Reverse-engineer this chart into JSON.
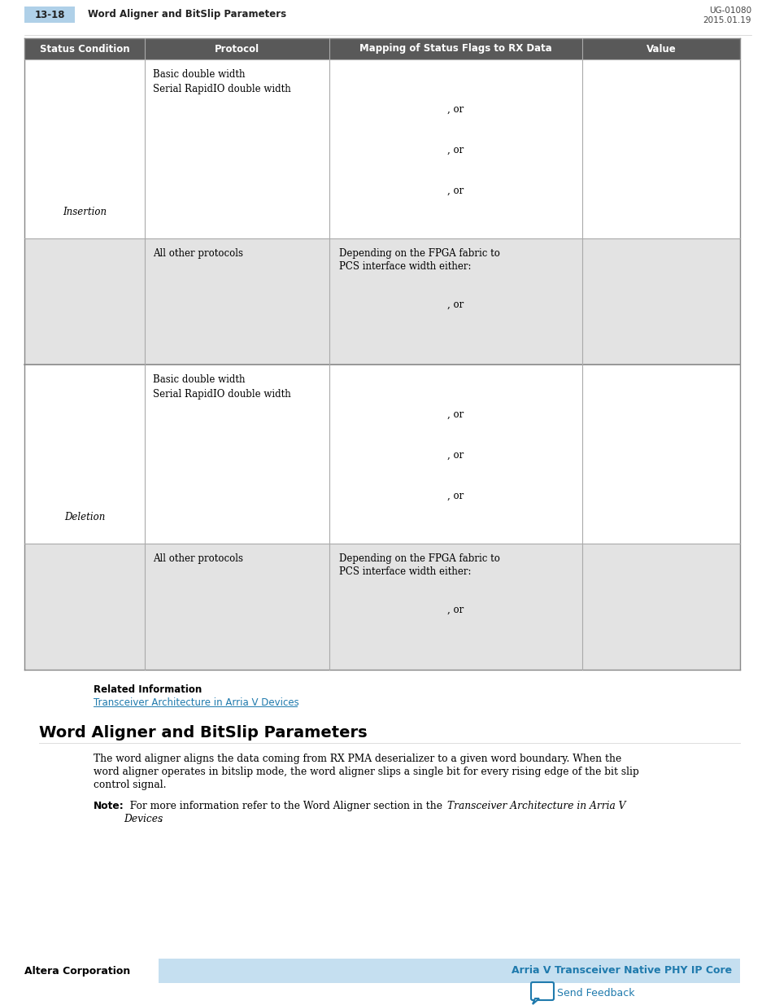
{
  "page_num": "13-18",
  "page_title": "Word Aligner and BitSlip Parameters",
  "doc_id": "UG-01080",
  "doc_date": "2015.01.19",
  "page_num_bg": "#afd0e8",
  "table_header_bg": "#595959",
  "table_header_text": "#ffffff",
  "table_row_bg_white": "#ffffff",
  "table_row_bg_gray": "#e3e3e3",
  "table_border_dark": "#888888",
  "table_border_light": "#aaaaaa",
  "col_headers": [
    "Status Condition",
    "Protocol",
    "Mapping of Status Flags to RX Data",
    "Value"
  ],
  "col_bounds": [
    30,
    178,
    405,
    716,
    910
  ],
  "section_title": "Word Aligner and BitSlip Parameters",
  "related_info_label": "Related Information",
  "related_link": "Transceiver Architecture in Arria V Devices",
  "link_color": "#1f7aad",
  "footer_left": "Altera Corporation",
  "footer_right": "Arria V Transceiver Native PHY IP Core",
  "feedback_text": "Send Feedback",
  "footer_bg": "#c5dff0",
  "footer_text_color": "#1f7aad"
}
